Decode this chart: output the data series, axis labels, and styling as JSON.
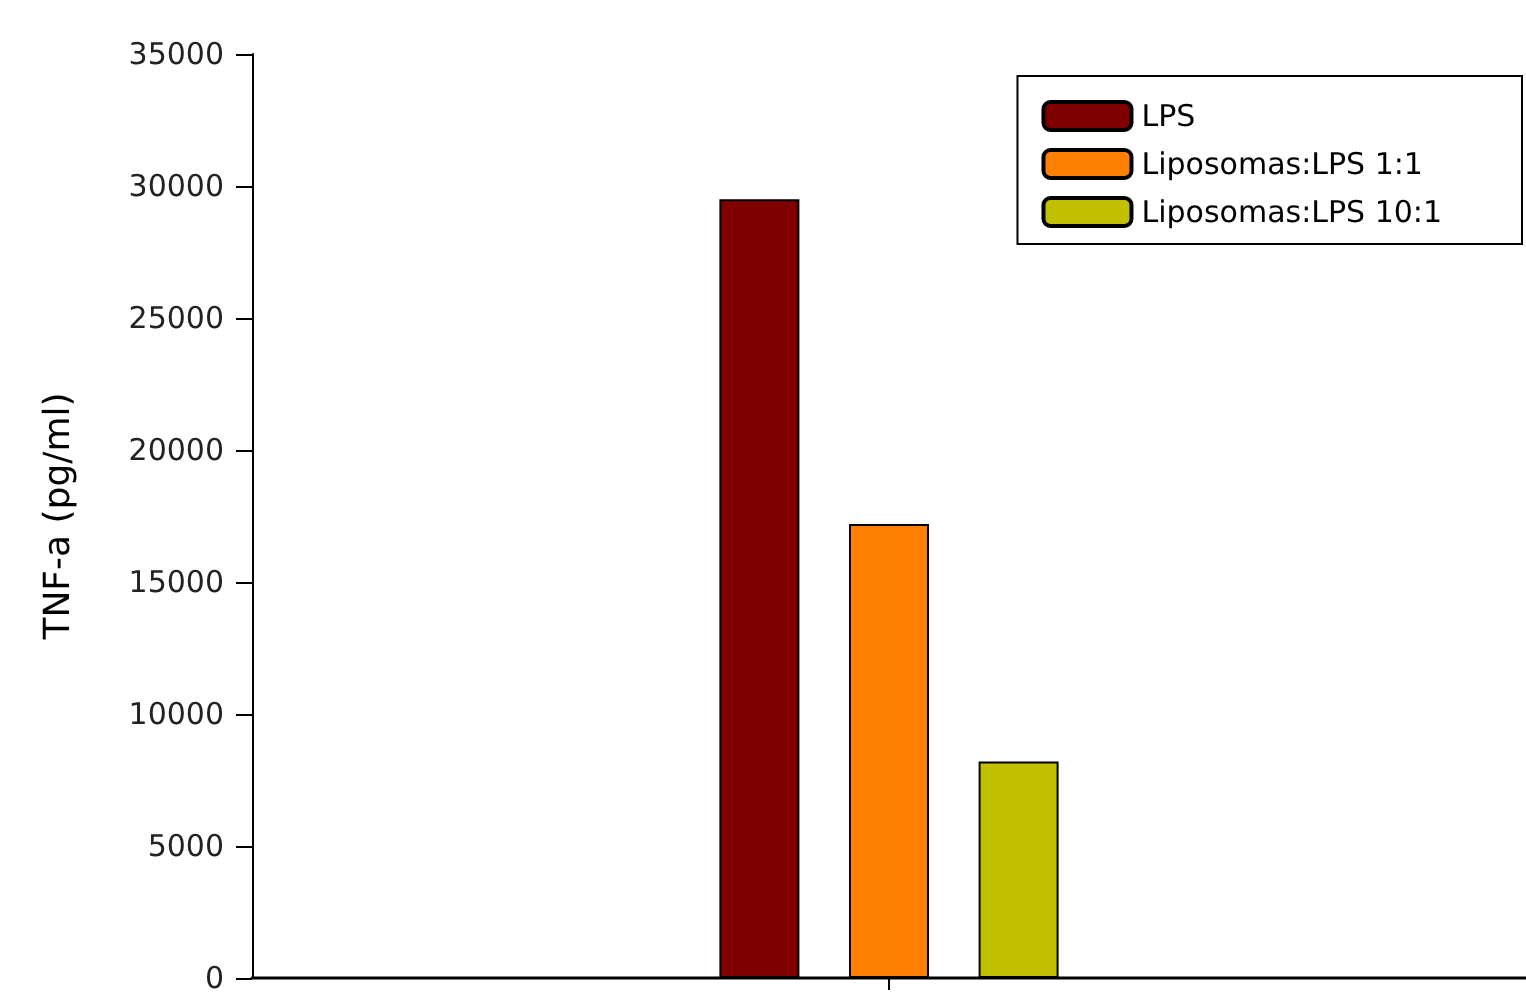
{
  "chart_data": {
    "type": "bar",
    "ylabel": "TNF-a (pg/ml)",
    "categories": [
      null
    ],
    "series": [
      {
        "name": "LPS",
        "color": "#800000",
        "values": [
          29500
        ]
      },
      {
        "name": "Liposomas:LPS 1:1",
        "color": "#ff8000",
        "values": [
          17200
        ]
      },
      {
        "name": "Liposomas:LPS 10:1",
        "color": "#c0c000",
        "values": [
          8200
        ]
      }
    ],
    "ylim": [
      0,
      35000
    ],
    "yticks": [
      0,
      5000,
      10000,
      15000,
      20000,
      25000,
      30000,
      35000
    ],
    "grid": false,
    "legend": "top right"
  }
}
